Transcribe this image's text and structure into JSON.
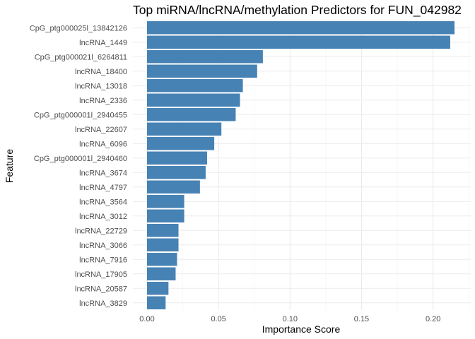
{
  "chart_data": {
    "type": "bar",
    "orientation": "horizontal",
    "title": "Top miRNA/lncRNA/methylation Predictors for FUN_042982",
    "xlabel": "Importance Score",
    "ylabel": "Feature",
    "xlim": [
      0,
      0.22
    ],
    "xticks": [
      0.0,
      0.05,
      0.1,
      0.15,
      0.2
    ],
    "xtick_labels": [
      "0.00",
      "0.05",
      "0.10",
      "0.15",
      "0.20"
    ],
    "grid": true,
    "bar_color": "#4682B4",
    "categories": [
      "CpG_ptg000025l_13842126",
      "lncRNA_1449",
      "CpG_ptg000021l_6264811",
      "lncRNA_18400",
      "lncRNA_13018",
      "lncRNA_2336",
      "CpG_ptg000001l_2940455",
      "lncRNA_22607",
      "lncRNA_6096",
      "CpG_ptg000001l_2940460",
      "lncRNA_3674",
      "lncRNA_4797",
      "lncRNA_3564",
      "lncRNA_3012",
      "lncRNA_22729",
      "lncRNA_3066",
      "lncRNA_7916",
      "lncRNA_17905",
      "lncRNA_20587",
      "lncRNA_3829"
    ],
    "values": [
      0.215,
      0.212,
      0.081,
      0.077,
      0.067,
      0.065,
      0.062,
      0.052,
      0.047,
      0.042,
      0.041,
      0.037,
      0.026,
      0.026,
      0.022,
      0.022,
      0.021,
      0.02,
      0.015,
      0.013
    ]
  }
}
